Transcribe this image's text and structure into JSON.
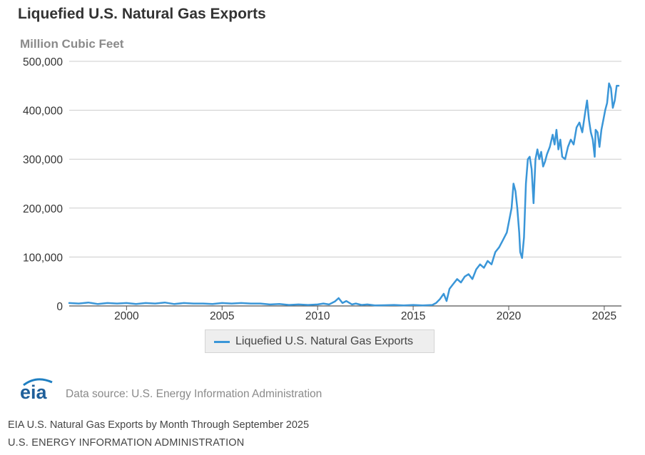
{
  "header": {
    "title": "Liquefied U.S. Natural Gas Exports",
    "units": "Million Cubic Feet"
  },
  "colors": {
    "series": "#3a96d8",
    "grid": "#cccccc",
    "legend_bg": "#eeeeee"
  },
  "legend": {
    "label": "Liquefied U.S. Natural Gas Exports"
  },
  "footer": {
    "logo_text": "eia",
    "source": "Data source: U.S. Energy Information Administration",
    "caption": "EIA U.S. Natural Gas Exports by Month Through September 2025",
    "credit": "U.S. ENERGY INFORMATION ADMINISTRATION"
  },
  "chart_data": {
    "type": "line",
    "title": "Liquefied U.S. Natural Gas Exports",
    "ylabel": "Million Cubic Feet",
    "xlabel": "",
    "xlim": [
      1997,
      2025.9
    ],
    "ylim": [
      0,
      500000
    ],
    "yticks": [
      0,
      100000,
      200000,
      300000,
      400000,
      500000
    ],
    "ytick_labels": [
      "0",
      "100,000",
      "200,000",
      "300,000",
      "400,000",
      "500,000"
    ],
    "xticks": [
      2000,
      2005,
      2010,
      2015,
      2020,
      2025
    ],
    "xtick_labels": [
      "2000",
      "2005",
      "2010",
      "2015",
      "2020",
      "2025"
    ],
    "grid": true,
    "legend_position": "bottom-center",
    "series": [
      {
        "name": "Liquefied U.S. Natural Gas Exports",
        "points": [
          [
            1997.0,
            6000
          ],
          [
            1997.5,
            5000
          ],
          [
            1998.0,
            7000
          ],
          [
            1998.5,
            4000
          ],
          [
            1999.0,
            6000
          ],
          [
            1999.5,
            5000
          ],
          [
            2000.0,
            6000
          ],
          [
            2000.5,
            4000
          ],
          [
            2001.0,
            6000
          ],
          [
            2001.5,
            5000
          ],
          [
            2002.0,
            7000
          ],
          [
            2002.5,
            4000
          ],
          [
            2003.0,
            6000
          ],
          [
            2003.5,
            5000
          ],
          [
            2004.0,
            5000
          ],
          [
            2004.5,
            4000
          ],
          [
            2005.0,
            6000
          ],
          [
            2005.5,
            5000
          ],
          [
            2006.0,
            6000
          ],
          [
            2006.5,
            5000
          ],
          [
            2007.0,
            5000
          ],
          [
            2007.5,
            3000
          ],
          [
            2008.0,
            4000
          ],
          [
            2008.5,
            2000
          ],
          [
            2009.0,
            3000
          ],
          [
            2009.5,
            2000
          ],
          [
            2010.0,
            3000
          ],
          [
            2010.3,
            5000
          ],
          [
            2010.6,
            3000
          ],
          [
            2010.9,
            9000
          ],
          [
            2011.1,
            16000
          ],
          [
            2011.3,
            6000
          ],
          [
            2011.5,
            10000
          ],
          [
            2011.8,
            3000
          ],
          [
            2012.0,
            5000
          ],
          [
            2012.3,
            2000
          ],
          [
            2012.6,
            3000
          ],
          [
            2013.0,
            1000
          ],
          [
            2013.5,
            1500
          ],
          [
            2014.0,
            2000
          ],
          [
            2014.5,
            1000
          ],
          [
            2015.0,
            2000
          ],
          [
            2015.5,
            1000
          ],
          [
            2016.0,
            2000
          ],
          [
            2016.2,
            6000
          ],
          [
            2016.4,
            14000
          ],
          [
            2016.6,
            25000
          ],
          [
            2016.75,
            10000
          ],
          [
            2016.9,
            35000
          ],
          [
            2017.1,
            45000
          ],
          [
            2017.3,
            55000
          ],
          [
            2017.5,
            48000
          ],
          [
            2017.7,
            60000
          ],
          [
            2017.9,
            65000
          ],
          [
            2018.1,
            55000
          ],
          [
            2018.3,
            75000
          ],
          [
            2018.5,
            85000
          ],
          [
            2018.7,
            78000
          ],
          [
            2018.9,
            92000
          ],
          [
            2019.1,
            85000
          ],
          [
            2019.3,
            110000
          ],
          [
            2019.5,
            120000
          ],
          [
            2019.7,
            135000
          ],
          [
            2019.9,
            150000
          ],
          [
            2020.0,
            170000
          ],
          [
            2020.15,
            200000
          ],
          [
            2020.25,
            250000
          ],
          [
            2020.35,
            235000
          ],
          [
            2020.45,
            200000
          ],
          [
            2020.55,
            150000
          ],
          [
            2020.6,
            110000
          ],
          [
            2020.7,
            98000
          ],
          [
            2020.8,
            140000
          ],
          [
            2020.9,
            250000
          ],
          [
            2021.0,
            300000
          ],
          [
            2021.1,
            305000
          ],
          [
            2021.2,
            280000
          ],
          [
            2021.3,
            210000
          ],
          [
            2021.4,
            300000
          ],
          [
            2021.5,
            320000
          ],
          [
            2021.6,
            300000
          ],
          [
            2021.7,
            315000
          ],
          [
            2021.8,
            285000
          ],
          [
            2021.9,
            295000
          ],
          [
            2022.0,
            310000
          ],
          [
            2022.15,
            325000
          ],
          [
            2022.3,
            350000
          ],
          [
            2022.4,
            330000
          ],
          [
            2022.5,
            360000
          ],
          [
            2022.6,
            320000
          ],
          [
            2022.7,
            340000
          ],
          [
            2022.8,
            305000
          ],
          [
            2022.95,
            300000
          ],
          [
            2023.1,
            325000
          ],
          [
            2023.25,
            340000
          ],
          [
            2023.4,
            330000
          ],
          [
            2023.55,
            365000
          ],
          [
            2023.7,
            375000
          ],
          [
            2023.85,
            355000
          ],
          [
            2024.0,
            395000
          ],
          [
            2024.1,
            420000
          ],
          [
            2024.2,
            380000
          ],
          [
            2024.3,
            355000
          ],
          [
            2024.4,
            340000
          ],
          [
            2024.5,
            305000
          ],
          [
            2024.55,
            360000
          ],
          [
            2024.65,
            355000
          ],
          [
            2024.75,
            325000
          ],
          [
            2024.85,
            360000
          ],
          [
            2024.95,
            380000
          ],
          [
            2025.05,
            400000
          ],
          [
            2025.15,
            415000
          ],
          [
            2025.25,
            455000
          ],
          [
            2025.35,
            445000
          ],
          [
            2025.45,
            405000
          ],
          [
            2025.55,
            420000
          ],
          [
            2025.65,
            450000
          ],
          [
            2025.75,
            450000
          ]
        ]
      }
    ]
  }
}
